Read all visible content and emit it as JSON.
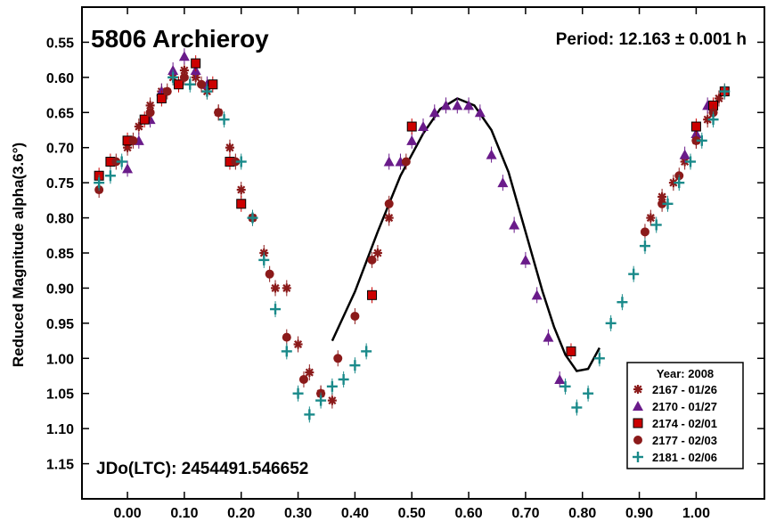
{
  "chart_data": {
    "type": "scatter",
    "title": "5806 Archieroy",
    "period_text": "Period: 12.163 ± 0.001 h",
    "jd_text": "JDo(LTC): 2454491.546652",
    "ylabel": "Reduced Magnitude alpha(3.6°)",
    "xlabel": "",
    "xlim": [
      -0.08,
      1.12
    ],
    "ylim": [
      1.2,
      0.5
    ],
    "y_inverted": true,
    "xticks": [
      "0.00",
      "0.10",
      "0.20",
      "0.30",
      "0.40",
      "0.50",
      "0.60",
      "0.70",
      "0.80",
      "0.90",
      "1.00"
    ],
    "yticks": [
      "0.55",
      "0.60",
      "0.65",
      "0.70",
      "0.75",
      "0.80",
      "0.85",
      "0.90",
      "0.95",
      "1.00",
      "1.05",
      "1.10",
      "1.15"
    ],
    "legend": {
      "title": "Year: 2008",
      "placement": "bottom-right",
      "entries": [
        {
          "label": "2167 - 01/26",
          "marker": "asterisk",
          "color": "#8b1a1a"
        },
        {
          "label": "2170 - 01/27",
          "marker": "triangle",
          "color": "#6a1b8a"
        },
        {
          "label": "2174 - 02/01",
          "marker": "square",
          "color": "#cc0000"
        },
        {
          "label": "2177 - 02/03",
          "marker": "circle",
          "color": "#8b1a1a"
        },
        {
          "label": "2181 - 02/06",
          "marker": "plus",
          "color": "#1a8a8a"
        }
      ]
    },
    "fit_curve": {
      "color": "#000000",
      "points": [
        [
          0.36,
          0.975
        ],
        [
          0.4,
          0.905
        ],
        [
          0.44,
          0.82
        ],
        [
          0.48,
          0.74
        ],
        [
          0.52,
          0.68
        ],
        [
          0.55,
          0.645
        ],
        [
          0.58,
          0.63
        ],
        [
          0.61,
          0.64
        ],
        [
          0.64,
          0.675
        ],
        [
          0.67,
          0.735
        ],
        [
          0.7,
          0.82
        ],
        [
          0.73,
          0.905
        ],
        [
          0.75,
          0.955
        ],
        [
          0.77,
          0.995
        ],
        [
          0.79,
          1.018
        ],
        [
          0.81,
          1.015
        ],
        [
          0.83,
          0.985
        ]
      ]
    },
    "series": [
      {
        "name": "2167 - 01/26",
        "marker": "asterisk",
        "color": "#8b1a1a",
        "x": [
          0.0,
          0.02,
          0.04,
          0.06,
          0.08,
          0.1,
          0.12,
          0.14,
          0.16,
          0.18,
          0.2,
          0.22,
          0.24,
          0.26,
          0.28,
          0.3,
          0.32,
          0.34,
          0.36,
          0.44,
          0.46,
          0.92,
          0.94,
          0.96,
          0.98,
          1.0,
          1.02,
          1.04
        ],
        "y": [
          0.7,
          0.67,
          0.64,
          0.62,
          0.6,
          0.59,
          0.6,
          0.62,
          0.65,
          0.7,
          0.76,
          0.8,
          0.85,
          0.9,
          0.9,
          0.98,
          1.02,
          1.05,
          1.06,
          0.85,
          0.8,
          0.8,
          0.77,
          0.75,
          0.72,
          0.69,
          0.66,
          0.63
        ]
      },
      {
        "name": "2170 - 01/27",
        "marker": "triangle",
        "color": "#6a1b8a",
        "x": [
          0.0,
          0.02,
          0.04,
          0.06,
          0.08,
          0.1,
          0.12,
          0.14,
          0.46,
          0.48,
          0.5,
          0.52,
          0.54,
          0.56,
          0.58,
          0.6,
          0.62,
          0.64,
          0.66,
          0.68,
          0.7,
          0.72,
          0.74,
          0.76,
          0.98,
          1.0,
          1.02
        ],
        "y": [
          0.73,
          0.69,
          0.66,
          0.62,
          0.59,
          0.57,
          0.59,
          0.61,
          0.72,
          0.72,
          0.69,
          0.67,
          0.65,
          0.64,
          0.64,
          0.64,
          0.65,
          0.71,
          0.75,
          0.81,
          0.86,
          0.91,
          0.97,
          1.03,
          0.71,
          0.68,
          0.64
        ]
      },
      {
        "name": "2174 - 02/01",
        "marker": "square",
        "color": "#cc0000",
        "x": [
          -0.05,
          -0.03,
          0.0,
          0.03,
          0.06,
          0.09,
          0.12,
          0.15,
          0.18,
          0.2,
          0.43,
          0.5,
          0.78,
          1.0,
          1.03,
          1.05
        ],
        "y": [
          0.74,
          0.72,
          0.69,
          0.66,
          0.63,
          0.61,
          0.58,
          0.61,
          0.72,
          0.78,
          0.91,
          0.67,
          0.99,
          0.67,
          0.64,
          0.62
        ]
      },
      {
        "name": "2177 - 02/03",
        "marker": "circle",
        "color": "#8b1a1a",
        "x": [
          -0.05,
          -0.02,
          0.01,
          0.04,
          0.07,
          0.1,
          0.13,
          0.16,
          0.19,
          0.22,
          0.25,
          0.28,
          0.31,
          0.34,
          0.37,
          0.4,
          0.43,
          0.46,
          0.49,
          0.91,
          0.94,
          0.97,
          1.0,
          1.03
        ],
        "y": [
          0.76,
          0.72,
          0.69,
          0.65,
          0.62,
          0.6,
          0.61,
          0.65,
          0.72,
          0.8,
          0.88,
          0.97,
          1.03,
          1.05,
          1.0,
          0.94,
          0.86,
          0.78,
          0.72,
          0.82,
          0.78,
          0.74,
          0.69,
          0.65
        ]
      },
      {
        "name": "2181 - 02/06",
        "marker": "plus",
        "color": "#1a8a8a",
        "x": [
          -0.05,
          -0.03,
          -0.01,
          0.08,
          0.11,
          0.14,
          0.17,
          0.2,
          0.22,
          0.24,
          0.26,
          0.28,
          0.3,
          0.32,
          0.34,
          0.36,
          0.38,
          0.4,
          0.42,
          0.77,
          0.79,
          0.81,
          0.83,
          0.85,
          0.87,
          0.89,
          0.91,
          0.93,
          0.95,
          0.97,
          0.99,
          1.01,
          1.03,
          1.05
        ],
        "y": [
          0.75,
          0.74,
          0.72,
          0.6,
          0.61,
          0.62,
          0.66,
          0.72,
          0.8,
          0.86,
          0.93,
          0.99,
          1.05,
          1.08,
          1.06,
          1.04,
          1.03,
          1.01,
          0.99,
          1.04,
          1.07,
          1.05,
          1.0,
          0.95,
          0.92,
          0.88,
          0.84,
          0.81,
          0.78,
          0.75,
          0.72,
          0.69,
          0.66,
          0.62
        ]
      }
    ]
  }
}
